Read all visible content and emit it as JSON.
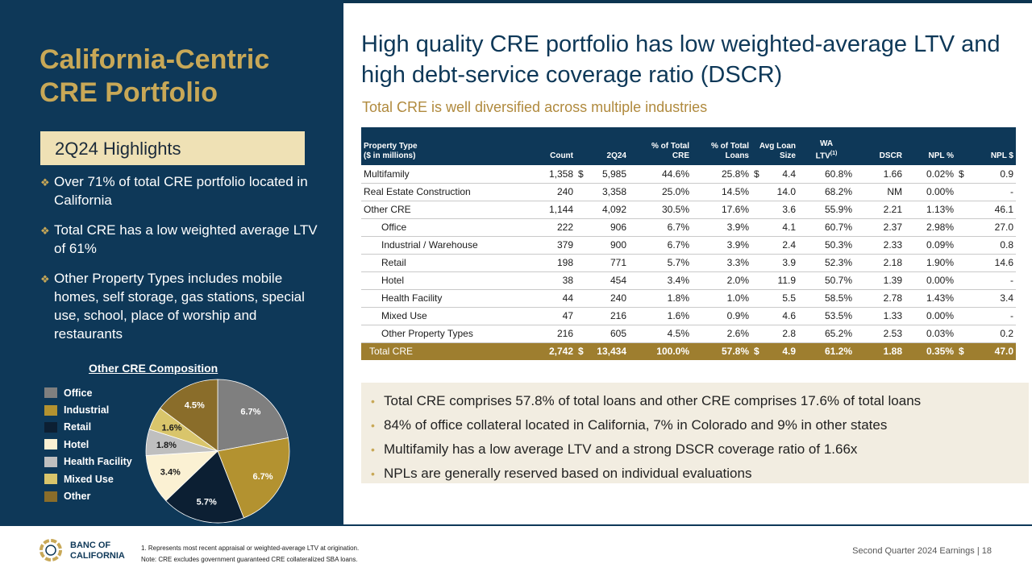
{
  "left": {
    "title": "California-Centric CRE Portfolio",
    "highlights_label": "2Q24 Highlights",
    "bullets": [
      "Over 71% of total CRE portfolio located in California",
      "Total CRE has a low weighted average LTV of 61%",
      "Other Property Types includes mobile homes, self storage, gas stations, special use, school, place of worship and restaurants"
    ],
    "bullet_glyph": "❖"
  },
  "chart_data": {
    "type": "pie",
    "title": "Other CRE Composition",
    "labels": [
      "Office",
      "Industrial",
      "Retail",
      "Hotel",
      "Health Facility",
      "Mixed Use",
      "Other"
    ],
    "values": [
      6.7,
      6.7,
      5.7,
      3.4,
      1.8,
      1.6,
      4.5
    ],
    "value_labels": [
      "6.7%",
      "6.7%",
      "5.7%",
      "3.4%",
      "1.8%",
      "1.6%",
      "4.5%"
    ],
    "colors": [
      "#7f7f7f",
      "#b39230",
      "#0c1f33",
      "#fbf1d3",
      "#bfbfbf",
      "#d9c56b",
      "#8a6d2a"
    ],
    "label_colors": [
      "#ffffff",
      "#ffffff",
      "#ffffff",
      "#1b1b1b",
      "#1b1b1b",
      "#1b1b1b",
      "#ffffff"
    ],
    "legend_position": "left"
  },
  "header": {
    "title": "High quality CRE portfolio has low weighted-average LTV and high debt-service coverage ratio (DSCR)",
    "subtitle": "Total CRE is well diversified across multiple  industries"
  },
  "table": {
    "headers": {
      "type_line1": "Property Type",
      "type_line2": "($ in millions)",
      "count": "Count",
      "q": "2Q24",
      "pct_cre_line1": "% of Total",
      "pct_cre_line2": "CRE",
      "pct_loans_line1": "% of  Total",
      "pct_loans_line2": "Loans",
      "avg_line1": "Avg Loan",
      "avg_line2": "Size",
      "ltv_line1": "WA",
      "ltv_line2": "LTV",
      "ltv_sup": "(1)",
      "dscr": "DSCR",
      "npl_pct": "NPL %",
      "npl_amt": "NPL $"
    },
    "rows": [
      {
        "type": "Multifamily",
        "indent": false,
        "count": "1,358",
        "d1": "$",
        "q": "5,985",
        "pct_cre": "44.6%",
        "pct_loans": "25.8%",
        "d2": "$",
        "avg": "4.4",
        "ltv": "60.8%",
        "dscr": "1.66",
        "npl_pct": "0.02%",
        "d3": "$",
        "npl_amt": "0.9"
      },
      {
        "type": "Real Estate Construction",
        "indent": false,
        "count": "240",
        "d1": "",
        "q": "3,358",
        "pct_cre": "25.0%",
        "pct_loans": "14.5%",
        "d2": "",
        "avg": "14.0",
        "ltv": "68.2%",
        "dscr": "NM",
        "npl_pct": "0.00%",
        "d3": "",
        "npl_amt": "-"
      },
      {
        "type": "Other CRE",
        "indent": false,
        "count": "1,144",
        "d1": "",
        "q": "4,092",
        "pct_cre": "30.5%",
        "pct_loans": "17.6%",
        "d2": "",
        "avg": "3.6",
        "ltv": "55.9%",
        "dscr": "2.21",
        "npl_pct": "1.13%",
        "d3": "",
        "npl_amt": "46.1"
      },
      {
        "type": "Office",
        "indent": true,
        "count": "222",
        "d1": "",
        "q": "906",
        "pct_cre": "6.7%",
        "pct_loans": "3.9%",
        "d2": "",
        "avg": "4.1",
        "ltv": "60.7%",
        "dscr": "2.37",
        "npl_pct": "2.98%",
        "d3": "",
        "npl_amt": "27.0"
      },
      {
        "type": "Industrial / Warehouse",
        "indent": true,
        "count": "379",
        "d1": "",
        "q": "900",
        "pct_cre": "6.7%",
        "pct_loans": "3.9%",
        "d2": "",
        "avg": "2.4",
        "ltv": "50.3%",
        "dscr": "2.33",
        "npl_pct": "0.09%",
        "d3": "",
        "npl_amt": "0.8"
      },
      {
        "type": "Retail",
        "indent": true,
        "count": "198",
        "d1": "",
        "q": "771",
        "pct_cre": "5.7%",
        "pct_loans": "3.3%",
        "d2": "",
        "avg": "3.9",
        "ltv": "52.3%",
        "dscr": "2.18",
        "npl_pct": "1.90%",
        "d3": "",
        "npl_amt": "14.6"
      },
      {
        "type": "Hotel",
        "indent": true,
        "count": "38",
        "d1": "",
        "q": "454",
        "pct_cre": "3.4%",
        "pct_loans": "2.0%",
        "d2": "",
        "avg": "11.9",
        "ltv": "50.7%",
        "dscr": "1.39",
        "npl_pct": "0.00%",
        "d3": "",
        "npl_amt": "-"
      },
      {
        "type": "Health Facility",
        "indent": true,
        "count": "44",
        "d1": "",
        "q": "240",
        "pct_cre": "1.8%",
        "pct_loans": "1.0%",
        "d2": "",
        "avg": "5.5",
        "ltv": "58.5%",
        "dscr": "2.78",
        "npl_pct": "1.43%",
        "d3": "",
        "npl_amt": "3.4"
      },
      {
        "type": "Mixed Use",
        "indent": true,
        "count": "47",
        "d1": "",
        "q": "216",
        "pct_cre": "1.6%",
        "pct_loans": "0.9%",
        "d2": "",
        "avg": "4.6",
        "ltv": "53.5%",
        "dscr": "1.33",
        "npl_pct": "0.00%",
        "d3": "",
        "npl_amt": "-"
      },
      {
        "type": "Other Property Types",
        "indent": true,
        "count": "216",
        "d1": "",
        "q": "605",
        "pct_cre": "4.5%",
        "pct_loans": "2.6%",
        "d2": "",
        "avg": "2.8",
        "ltv": "65.2%",
        "dscr": "2.53",
        "npl_pct": "0.03%",
        "d3": "",
        "npl_amt": "0.2"
      }
    ],
    "total": {
      "type": "Total CRE",
      "count": "2,742",
      "d1": "$",
      "q": "13,434",
      "pct_cre": "100.0%",
      "pct_loans": "57.8%",
      "d2": "$",
      "avg": "4.9",
      "ltv": "61.2%",
      "dscr": "1.88",
      "npl_pct": "0.35%",
      "d3": "$",
      "npl_amt": "47.0"
    }
  },
  "notes": [
    "Total CRE comprises 57.8% of total loans and other CRE comprises 17.6% of total loans",
    "84% of office collateral located in California, 7% in Colorado and 9% in other states",
    "Multifamily has a low average LTV and a strong DSCR coverage ratio of 1.66x",
    "NPLs are generally reserved based on individual evaluations"
  ],
  "note_glyph": "•",
  "footer": {
    "logo_line1": "BANC OF",
    "logo_line2": "CALIFORNIA",
    "footnote1": "1.  Represents most recent appraisal or weighted-average LTV at origination.",
    "footnote2": "Note: CRE excludes government guaranteed CRE collateralized SBA loans.",
    "page_label": "Second Quarter 2024 Earnings |  18"
  }
}
